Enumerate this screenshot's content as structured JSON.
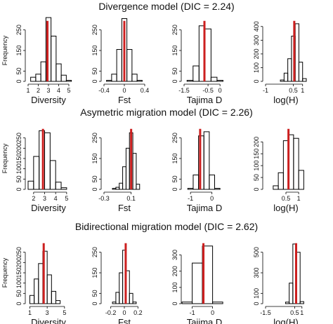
{
  "colors": {
    "bar_stroke": "#000000",
    "marker": "#cc1f1f"
  },
  "rows": [
    {
      "title": "Divergence model (DIC = 2.24)"
    },
    {
      "title": "Asymetric migration model (DIC = 2.26)"
    },
    {
      "title": "Bidirectional migration model (DIC = 2.62)"
    }
  ],
  "chart_data": [
    {
      "type": "bar",
      "xlabel": "Diversity",
      "ylabel": "Frequency",
      "x_ticks": [
        1,
        2,
        3,
        4,
        5
      ],
      "y_ticks": [
        0,
        50,
        150,
        250
      ],
      "xlim": [
        1,
        5
      ],
      "ylim": [
        0,
        300
      ],
      "bins": [
        1.5,
        2.0,
        2.5,
        3.0,
        3.5,
        4.0,
        4.5,
        5.0
      ],
      "counts": [
        20,
        35,
        95,
        310,
        220,
        85,
        30,
        5
      ],
      "marker": 2.9
    },
    {
      "type": "bar",
      "xlabel": "Fst",
      "ylabel": "",
      "x_ticks": [
        -0.4,
        0.0,
        0.4
      ],
      "y_ticks": [
        0,
        50,
        150,
        250
      ],
      "xlim": [
        -0.4,
        0.4
      ],
      "ylim": [
        0,
        300
      ],
      "bins": [
        -0.3,
        -0.2,
        -0.1,
        0.0,
        0.1,
        0.2,
        0.3
      ],
      "counts": [
        5,
        35,
        155,
        305,
        155,
        35,
        5
      ],
      "marker": 0.0
    },
    {
      "type": "bar",
      "xlabel": "Tajima D",
      "ylabel": "",
      "x_ticks": [
        -1.5,
        -0.5,
        0
      ],
      "y_ticks": [
        0,
        50,
        150,
        250
      ],
      "xlim": [
        -1.5,
        0.2
      ],
      "ylim": [
        0,
        300
      ],
      "bins": [
        -1.25,
        -1.0,
        -0.75,
        -0.5,
        -0.25,
        0.0
      ],
      "counts": [
        5,
        75,
        270,
        255,
        20,
        5
      ],
      "marker": -0.65
    },
    {
      "type": "bar",
      "xlabel": "log(H)",
      "ylabel": "",
      "x_ticks": [
        -1.0,
        0.5,
        1.0
      ],
      "y_ticks": [
        0,
        100,
        200,
        300,
        400
      ],
      "xlim": [
        -1.0,
        1.2
      ],
      "ylim": [
        0,
        450
      ],
      "bins": [
        -0.1,
        0.1,
        0.3,
        0.5,
        0.7,
        0.9,
        1.1
      ],
      "counts": [
        10,
        60,
        165,
        330,
        420,
        140,
        20
      ],
      "marker": 0.55
    },
    {
      "type": "bar",
      "xlabel": "Diversity",
      "ylabel": "Frequency",
      "x_ticks": [
        2,
        3,
        4,
        5
      ],
      "y_ticks": [
        0,
        50,
        100,
        150,
        200,
        250
      ],
      "xlim": [
        1.5,
        5.2
      ],
      "ylim": [
        0,
        300
      ],
      "bins": [
        1.75,
        2.25,
        2.75,
        3.25,
        3.75,
        4.25,
        4.75
      ],
      "counts": [
        40,
        160,
        285,
        275,
        140,
        35,
        8
      ],
      "marker": 2.85
    },
    {
      "type": "bar",
      "xlabel": "Fst",
      "ylabel": "",
      "x_ticks": [
        -0.3,
        0.1
      ],
      "y_ticks": [
        0,
        50,
        150,
        250
      ],
      "xlim": [
        -0.3,
        0.3
      ],
      "ylim": [
        0,
        300
      ],
      "bins": [
        -0.15,
        -0.1,
        -0.05,
        0.0,
        0.05,
        0.1,
        0.15,
        0.2
      ],
      "counts": [
        5,
        10,
        30,
        110,
        200,
        275,
        175,
        25
      ],
      "marker": 0.1
    },
    {
      "type": "bar",
      "xlabel": "Tajima D",
      "ylabel": "",
      "x_ticks": [
        -1.0,
        0.0
      ],
      "y_ticks": [
        0,
        50,
        150,
        250
      ],
      "xlim": [
        -1.3,
        0.6
      ],
      "ylim": [
        0,
        300
      ],
      "bins": [
        -1.0,
        -0.75,
        -0.5,
        -0.25,
        0.0,
        0.25
      ],
      "counts": [
        5,
        70,
        260,
        280,
        70,
        5
      ],
      "marker": -0.55
    },
    {
      "type": "bar",
      "xlabel": "log(H)",
      "ylabel": "",
      "x_ticks": [
        0.5,
        1.0
      ],
      "y_ticks": [
        0,
        50,
        100,
        150,
        200
      ],
      "xlim": [
        -0.3,
        1.3
      ],
      "ylim": [
        0,
        260
      ],
      "bins": [
        0.1,
        0.3,
        0.5,
        0.7,
        0.9,
        1.1
      ],
      "counts": [
        15,
        70,
        205,
        230,
        215,
        80
      ],
      "marker": 0.6
    },
    {
      "type": "bar",
      "xlabel": "Diversity",
      "ylabel": "Frequency",
      "x_ticks": [
        1,
        3,
        5
      ],
      "y_ticks": [
        0,
        50,
        100,
        150,
        200,
        250
      ],
      "xlim": [
        0.8,
        5.5
      ],
      "ylim": [
        0,
        300
      ],
      "bins": [
        1.25,
        1.75,
        2.25,
        2.75,
        3.25,
        3.75,
        4.25
      ],
      "counts": [
        40,
        120,
        195,
        255,
        140,
        60,
        15
      ],
      "marker": 2.6
    },
    {
      "type": "bar",
      "xlabel": "Fst",
      "ylabel": "",
      "x_ticks": [
        -0.2,
        0.0,
        0.2
      ],
      "y_ticks": [
        0,
        50,
        150,
        250
      ],
      "xlim": [
        -0.3,
        0.3
      ],
      "ylim": [
        0,
        300
      ],
      "bins": [
        -0.15,
        -0.1,
        -0.05,
        0.0,
        0.05,
        0.1,
        0.15
      ],
      "counts": [
        8,
        55,
        150,
        260,
        160,
        50,
        8
      ],
      "marker": 0.02
    },
    {
      "type": "bar",
      "xlabel": "Tajima D",
      "ylabel": "",
      "x_ticks": [
        -1.0,
        0.0
      ],
      "y_ticks": [
        0,
        100,
        200,
        300
      ],
      "xlim": [
        -1.4,
        0.6
      ],
      "ylim": [
        0,
        380
      ],
      "bins": [
        -1.25,
        -0.75,
        -0.25,
        0.25
      ],
      "counts": [
        10,
        250,
        355,
        10
      ],
      "marker": -0.45
    },
    {
      "type": "bar",
      "xlabel": "log(H)",
      "ylabel": "",
      "x_ticks": [
        -1.5,
        0.5,
        1.0
      ],
      "y_ticks": [
        0,
        100,
        300,
        500
      ],
      "xlim": [
        -1.5,
        1.3
      ],
      "ylim": [
        0,
        600
      ],
      "bins": [
        0.0,
        0.25,
        0.5,
        0.75,
        1.0
      ],
      "counts": [
        15,
        200,
        580,
        500,
        20
      ],
      "marker": 0.6
    }
  ]
}
